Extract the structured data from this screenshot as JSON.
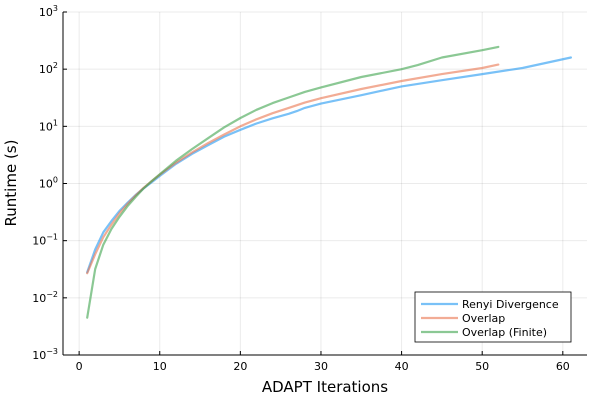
{
  "chart_data": {
    "type": "line",
    "title": "",
    "xlabel": "ADAPT Iterations",
    "ylabel": "Runtime (s)",
    "xlim": [
      -2,
      63
    ],
    "ylim": [
      0.001,
      1000
    ],
    "yscale": "log",
    "grid": true,
    "legend_position": "bottom-right",
    "x_ticks": [
      0,
      10,
      20,
      30,
      40,
      50,
      60
    ],
    "x_tick_labels": [
      "0",
      "10",
      "20",
      "30",
      "40",
      "50",
      "60"
    ],
    "y_ticks": [
      0.001,
      0.01,
      0.1,
      1,
      10,
      100,
      1000
    ],
    "y_tick_labels": [
      {
        "base": "10",
        "exp": "−3"
      },
      {
        "base": "10",
        "exp": "−2"
      },
      {
        "base": "10",
        "exp": "−1"
      },
      {
        "base": "10",
        "exp": "0"
      },
      {
        "base": "10",
        "exp": "1"
      },
      {
        "base": "10",
        "exp": "2"
      },
      {
        "base": "10",
        "exp": "3"
      }
    ],
    "series": [
      {
        "name": "Renyi Divergence",
        "color": "#1f97f1",
        "x": [
          1,
          2,
          3,
          4,
          5,
          6,
          7,
          8,
          9,
          10,
          12,
          14,
          16,
          18,
          20,
          22,
          24,
          26,
          27,
          28,
          30,
          35,
          40,
          45,
          50,
          55,
          61
        ],
        "y": [
          0.028,
          0.07,
          0.14,
          0.22,
          0.33,
          0.46,
          0.63,
          0.82,
          1.05,
          1.35,
          2.2,
          3.3,
          4.7,
          6.6,
          8.7,
          11.2,
          13.8,
          16.6,
          18.5,
          21,
          25,
          35,
          50,
          64,
          82,
          105,
          160
        ]
      },
      {
        "name": "Overlap",
        "color": "#e9744e",
        "x": [
          1,
          2,
          3,
          4,
          5,
          6,
          7,
          8,
          9,
          10,
          12,
          14,
          16,
          18,
          20,
          22,
          24,
          26,
          28,
          30,
          35,
          40,
          45,
          50,
          52
        ],
        "y": [
          0.027,
          0.058,
          0.115,
          0.19,
          0.3,
          0.44,
          0.62,
          0.84,
          1.1,
          1.42,
          2.3,
          3.5,
          5.1,
          7.2,
          10,
          13.3,
          17,
          21,
          26,
          31,
          45,
          62,
          82,
          105,
          120
        ]
      },
      {
        "name": "Overlap (Finite)",
        "color": "#3da44d",
        "x": [
          1,
          2,
          3,
          4,
          5,
          6,
          7,
          8,
          9,
          10,
          12,
          14,
          16,
          18,
          20,
          22,
          24,
          26,
          28,
          30,
          35,
          40,
          42,
          45,
          50,
          52
        ],
        "y": [
          0.0045,
          0.032,
          0.085,
          0.16,
          0.26,
          0.4,
          0.58,
          0.82,
          1.1,
          1.45,
          2.5,
          4.0,
          6.2,
          9.6,
          14,
          19.5,
          25.5,
          32,
          40,
          48,
          73,
          100,
          118,
          160,
          215,
          245
        ]
      }
    ]
  }
}
